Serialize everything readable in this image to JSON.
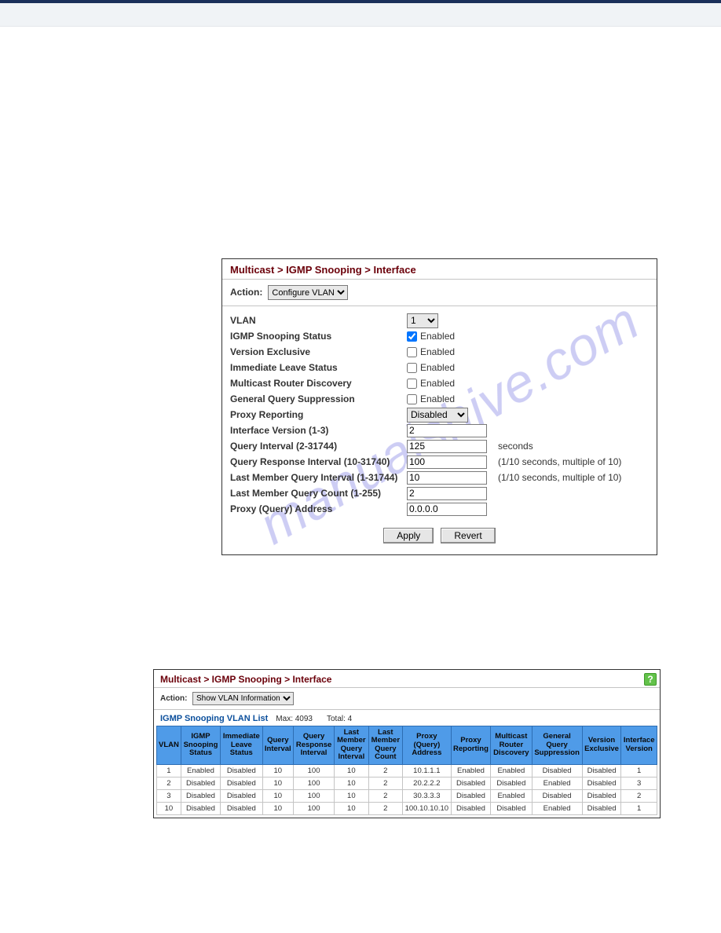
{
  "breadcrumb": "Multicast > IGMP Snooping > Interface",
  "actionLabel": "Action:",
  "actionConfigure": "Configure VLAN",
  "actionShow": "Show VLAN Information",
  "form": {
    "vlan": {
      "label": "VLAN",
      "value": "1"
    },
    "snoopStatus": {
      "label": "IGMP Snooping Status",
      "checked": true,
      "text": "Enabled"
    },
    "versionExclusive": {
      "label": "Version Exclusive",
      "checked": false,
      "text": "Enabled"
    },
    "immediateLeave": {
      "label": "Immediate Leave Status",
      "checked": false,
      "text": "Enabled"
    },
    "mrouterDisc": {
      "label": "Multicast Router Discovery",
      "checked": false,
      "text": "Enabled"
    },
    "genQuerySupp": {
      "label": "General Query Suppression",
      "checked": false,
      "text": "Enabled"
    },
    "proxyReporting": {
      "label": "Proxy Reporting",
      "value": "Disabled"
    },
    "ifaceVersion": {
      "label": "Interface Version (1-3)",
      "value": "2"
    },
    "queryInterval": {
      "label": "Query Interval (2-31744)",
      "value": "125",
      "suffix": "seconds"
    },
    "queryResp": {
      "label": "Query Response Interval (10-31740)",
      "value": "100",
      "suffix": "(1/10 seconds, multiple of 10)"
    },
    "lastMemInt": {
      "label": "Last Member Query Interval (1-31744)",
      "value": "10",
      "suffix": "(1/10 seconds, multiple of 10)"
    },
    "lastMemCount": {
      "label": "Last Member Query Count (1-255)",
      "value": "2"
    },
    "proxyAddr": {
      "label": "Proxy (Query) Address",
      "value": "0.0.0.0"
    }
  },
  "buttons": {
    "apply": "Apply",
    "revert": "Revert"
  },
  "list": {
    "title": "IGMP Snooping VLAN List",
    "max": "Max: 4093",
    "total": "Total: 4",
    "headers": [
      "VLAN",
      "IGMP Snooping Status",
      "Immediate Leave Status",
      "Query Interval",
      "Query Response Interval",
      "Last Member Query Interval",
      "Last Member Query Count",
      "Proxy (Query) Address",
      "Proxy Reporting",
      "Multicast Router Discovery",
      "General Query Suppression",
      "Version Exclusive",
      "Interface Version"
    ],
    "rows": [
      [
        "1",
        "Enabled",
        "Disabled",
        "10",
        "100",
        "10",
        "2",
        "10.1.1.1",
        "Enabled",
        "Enabled",
        "Disabled",
        "Disabled",
        "1"
      ],
      [
        "2",
        "Disabled",
        "Disabled",
        "10",
        "100",
        "10",
        "2",
        "20.2.2.2",
        "Disabled",
        "Disabled",
        "Enabled",
        "Disabled",
        "3"
      ],
      [
        "3",
        "Disabled",
        "Disabled",
        "10",
        "100",
        "10",
        "2",
        "30.3.3.3",
        "Disabled",
        "Enabled",
        "Disabled",
        "Disabled",
        "2"
      ],
      [
        "10",
        "Disabled",
        "Disabled",
        "10",
        "100",
        "10",
        "2",
        "100.10.10.10",
        "Disabled",
        "Disabled",
        "Enabled",
        "Disabled",
        "1"
      ]
    ]
  },
  "watermark": "manualshive.com",
  "colors": {
    "breadcrumb": "#6b000a",
    "headerBg": "#4f9be8",
    "headerBorder": "#2d6db3",
    "helpBg": "#63c24a"
  }
}
